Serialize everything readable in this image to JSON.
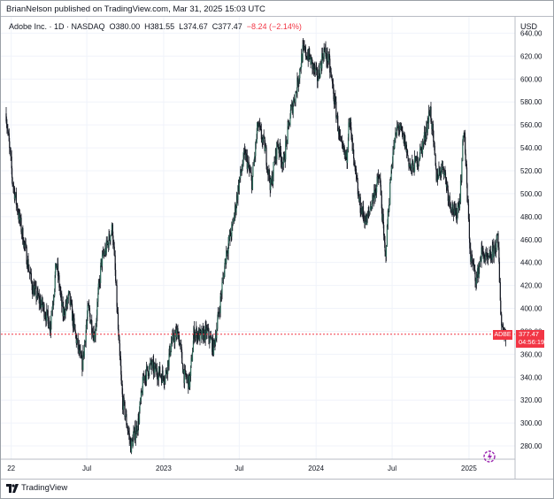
{
  "publisher_line": "BrianNelson published on TradingView.com, Mar 31, 2025 15:03 UTC",
  "symbol": {
    "name": "Adobe Inc. · 1D · NASDAQ",
    "open_label": "O",
    "open": "380.00",
    "high_label": "H",
    "high": "381.55",
    "low_label": "L",
    "low": "374.67",
    "close_label": "C",
    "close": "377.47",
    "change": "−8.24 (−2.14%)"
  },
  "currency": "USD",
  "last_price": {
    "ticker": "ADBE",
    "price": "377.47",
    "countdown": "04:56:19"
  },
  "brand": "TradingView",
  "colors": {
    "up": "#131722",
    "down": "#131722",
    "price_line": "#f23645",
    "grid": "#f0f3fa"
  },
  "icons": {
    "replay": "replay-icon",
    "logo": "tradingview-logo-icon"
  },
  "chart_data": {
    "type": "line",
    "title": "",
    "xlabel": "",
    "ylabel": "",
    "x_ticks": [
      "22",
      "Jul",
      "2023",
      "Jul",
      "2024",
      "Jul",
      "2025"
    ],
    "x_tick_dates": [
      "2022-01-01",
      "2022-07-01",
      "2023-01-01",
      "2023-07-01",
      "2024-01-01",
      "2024-07-01",
      "2025-01-01"
    ],
    "y_ticks": [
      280,
      300,
      320,
      340,
      360,
      380,
      400,
      420,
      440,
      460,
      480,
      500,
      520,
      540,
      560,
      580,
      600,
      620,
      640
    ],
    "ylim": [
      270,
      645
    ],
    "xlim": [
      "2021-12-20",
      "2025-04-15"
    ],
    "series": [
      {
        "x": [
          "2021-12-20",
          "2022-01-05",
          "2022-01-20",
          "2022-02-05",
          "2022-02-20",
          "2022-03-05",
          "2022-03-20",
          "2022-04-05",
          "2022-04-20",
          "2022-05-05",
          "2022-05-20",
          "2022-06-05",
          "2022-06-20",
          "2022-07-05",
          "2022-07-20",
          "2022-08-05",
          "2022-08-15",
          "2022-09-01",
          "2022-09-12",
          "2022-09-15",
          "2022-09-25",
          "2022-10-05",
          "2022-10-15",
          "2022-11-01",
          "2022-11-15",
          "2022-12-01",
          "2022-12-15",
          "2023-01-05",
          "2023-01-20",
          "2023-02-05",
          "2023-02-20",
          "2023-03-05",
          "2023-03-15",
          "2023-04-01",
          "2023-04-15",
          "2023-05-01",
          "2023-05-15",
          "2023-06-01",
          "2023-06-15",
          "2023-07-01",
          "2023-07-15",
          "2023-08-01",
          "2023-08-15",
          "2023-09-01",
          "2023-09-15",
          "2023-10-01",
          "2023-10-15",
          "2023-11-01",
          "2023-11-15",
          "2023-12-01",
          "2023-12-15",
          "2024-01-05",
          "2024-01-20",
          "2024-02-01",
          "2024-02-15",
          "2024-03-01",
          "2024-03-15",
          "2024-03-20",
          "2024-04-01",
          "2024-04-15",
          "2024-05-01",
          "2024-05-15",
          "2024-06-01",
          "2024-06-15",
          "2024-07-01",
          "2024-07-15",
          "2024-08-01",
          "2024-08-15",
          "2024-09-01",
          "2024-09-15",
          "2024-10-01",
          "2024-10-15",
          "2024-11-01",
          "2024-11-15",
          "2024-12-01",
          "2024-12-12",
          "2024-12-20",
          "2025-01-05",
          "2025-01-20",
          "2025-02-01",
          "2025-02-15",
          "2025-03-01",
          "2025-03-12",
          "2025-03-20",
          "2025-03-31"
        ],
        "values": [
          570,
          510,
          480,
          450,
          420,
          410,
          400,
          385,
          440,
          395,
          410,
          375,
          350,
          400,
          375,
          440,
          450,
          470,
          400,
          375,
          320,
          300,
          280,
          300,
          340,
          350,
          345,
          340,
          370,
          380,
          340,
          335,
          380,
          375,
          380,
          365,
          400,
          450,
          470,
          510,
          535,
          510,
          560,
          540,
          505,
          545,
          525,
          570,
          590,
          625,
          620,
          600,
          625,
          615,
          580,
          540,
          530,
          570,
          525,
          490,
          475,
          495,
          515,
          445,
          530,
          560,
          545,
          520,
          530,
          545,
          575,
          515,
          525,
          495,
          480,
          500,
          560,
          445,
          425,
          450,
          440,
          450,
          460,
          385,
          377.47
        ]
      }
    ]
  }
}
